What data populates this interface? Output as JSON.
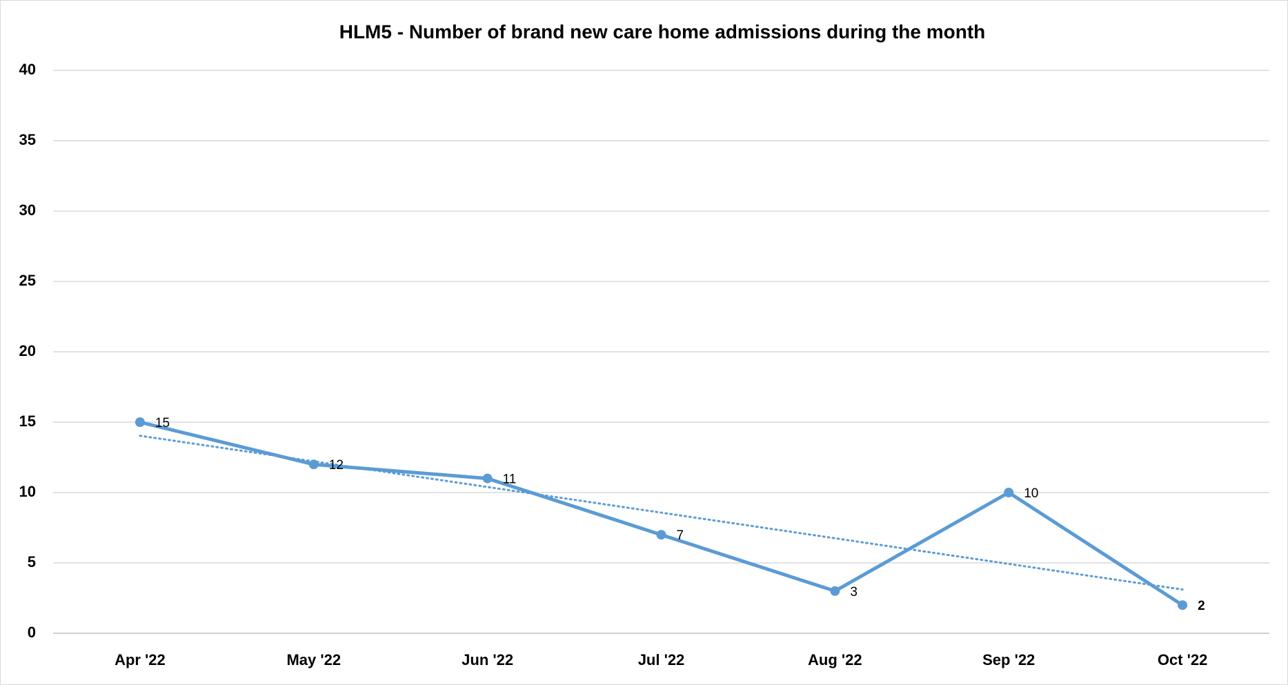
{
  "chart_data": {
    "type": "line",
    "title": "HLM5 - Number of brand new care home admissions during the month",
    "categories": [
      "Apr '22",
      "May '22",
      "Jun '22",
      "Jul '22",
      "Aug '22",
      "Sep '22",
      "Oct '22"
    ],
    "series": [
      {
        "name": "HLM5",
        "color": "#5b9bd5",
        "values": [
          15,
          12,
          11,
          7,
          3,
          10,
          2
        ]
      }
    ],
    "trendline": "linear",
    "ylim": [
      0,
      40
    ],
    "yticks": [
      0,
      5,
      10,
      15,
      20,
      25,
      30,
      35,
      40
    ],
    "grid": true
  }
}
